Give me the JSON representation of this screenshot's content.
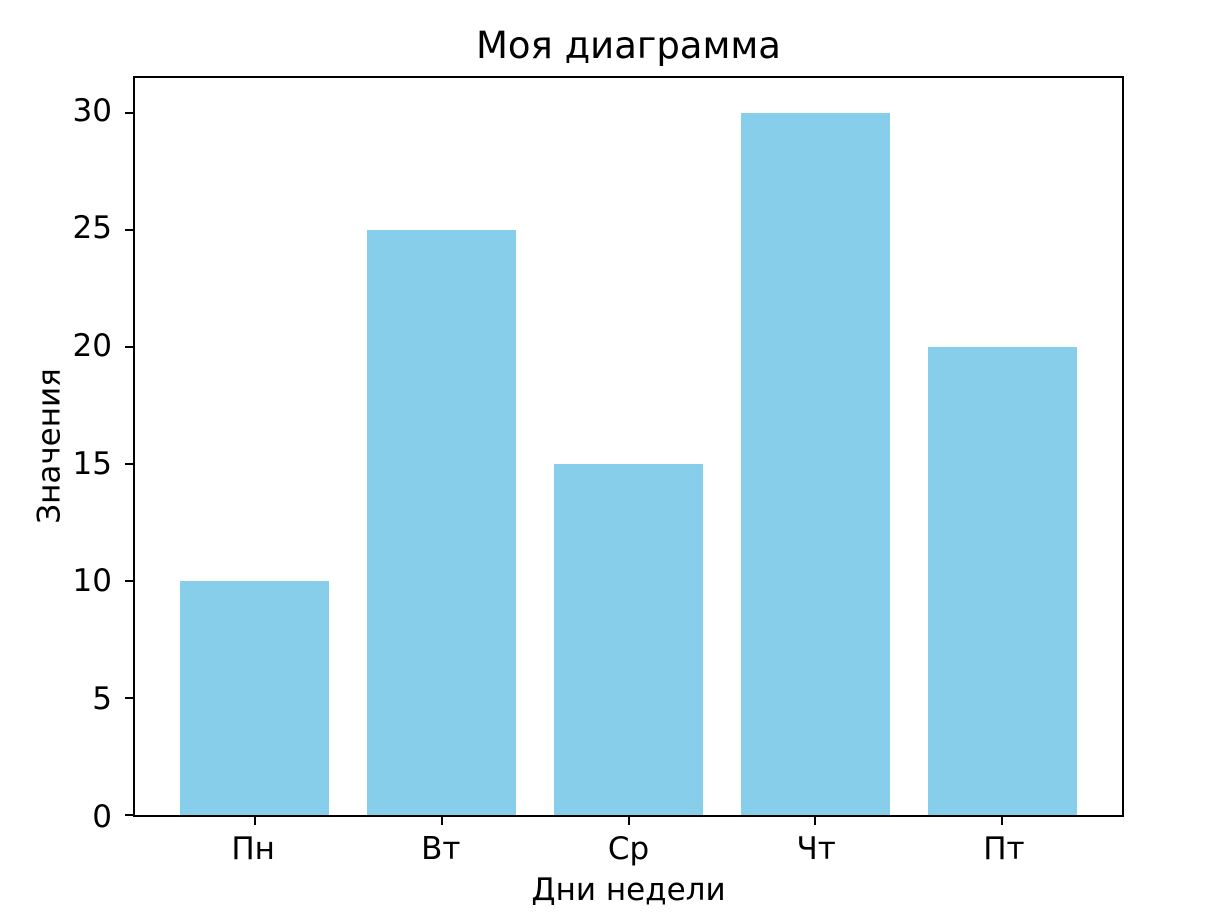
{
  "chart_data": {
    "type": "bar",
    "title": "Моя диаграмма",
    "xlabel": "Дни недели",
    "ylabel": "Значения",
    "categories": [
      "Пн",
      "Вт",
      "Ср",
      "Чт",
      "Пт"
    ],
    "values": [
      10,
      25,
      15,
      30,
      20
    ],
    "yticks": [
      0,
      5,
      10,
      15,
      20,
      25,
      30
    ],
    "ylim": [
      0,
      31.5
    ],
    "xlim": [
      -0.64,
      4.64
    ],
    "bar_width": 0.8,
    "bar_color": "#87CEEB",
    "axis_color": "#000000",
    "background_color": "#ffffff",
    "grid": false,
    "legend_position": "none"
  }
}
